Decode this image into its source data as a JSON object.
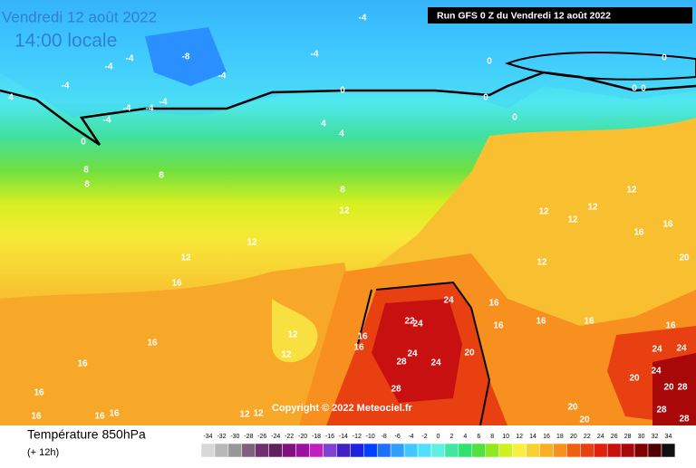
{
  "map": {
    "title": "Vendredi 12 août 2022",
    "subtitle": "14:00 locale",
    "run": "Run GFS 0 Z du Vendredi 12 août 2022",
    "copyright": "Copyright © 2022 Meteociel.fr",
    "variable": "Température 850hPa",
    "lead": "(+ 12h)",
    "contour_labels": [
      -4,
      -8,
      -4,
      -4,
      -4,
      -4,
      -4,
      -4,
      -4,
      -4,
      -4,
      0,
      0,
      0,
      0,
      0,
      0,
      0,
      0,
      4,
      4,
      4,
      8,
      8,
      8,
      8,
      12,
      12,
      12,
      16,
      12,
      12,
      16,
      16,
      16,
      16,
      16,
      16,
      12,
      12,
      12,
      12,
      12,
      12,
      16,
      16,
      12,
      24,
      22,
      24,
      24,
      28,
      24,
      20,
      16,
      16,
      16,
      16,
      16,
      16,
      28,
      20,
      24,
      24,
      20,
      24,
      20,
      28,
      28,
      28,
      20,
      20,
      16
    ],
    "scale": [
      {
        "value": -34,
        "color": "#d8d8d8"
      },
      {
        "value": -32,
        "color": "#b8b8b8"
      },
      {
        "value": -30,
        "color": "#989898"
      },
      {
        "value": -28,
        "color": "#806080"
      },
      {
        "value": -26,
        "color": "#703070"
      },
      {
        "value": -24,
        "color": "#602060"
      },
      {
        "value": -22,
        "color": "#801080"
      },
      {
        "value": -20,
        "color": "#a010a0"
      },
      {
        "value": -18,
        "color": "#c020c0"
      },
      {
        "value": -16,
        "color": "#8040d0"
      },
      {
        "value": -14,
        "color": "#4020c0"
      },
      {
        "value": -12,
        "color": "#2020e0"
      },
      {
        "value": -10,
        "color": "#0040ff"
      },
      {
        "value": -8,
        "color": "#2070ff"
      },
      {
        "value": -6,
        "color": "#30a0ff"
      },
      {
        "value": -4,
        "color": "#40c8ff"
      },
      {
        "value": -2,
        "color": "#50e0ff"
      },
      {
        "value": 0,
        "color": "#60f0e0"
      },
      {
        "value": 2,
        "color": "#40e8a0"
      },
      {
        "value": 4,
        "color": "#30e070"
      },
      {
        "value": 6,
        "color": "#50e040"
      },
      {
        "value": 8,
        "color": "#90e820"
      },
      {
        "value": 10,
        "color": "#d0f020"
      },
      {
        "value": 12,
        "color": "#f8f040"
      },
      {
        "value": 14,
        "color": "#f8d030"
      },
      {
        "value": 16,
        "color": "#f8b020"
      },
      {
        "value": 18,
        "color": "#f89020"
      },
      {
        "value": 20,
        "color": "#f06010"
      },
      {
        "value": 22,
        "color": "#e84010"
      },
      {
        "value": 24,
        "color": "#e02010"
      },
      {
        "value": 26,
        "color": "#c81010"
      },
      {
        "value": 28,
        "color": "#a80808"
      },
      {
        "value": 30,
        "color": "#800000"
      },
      {
        "value": 32,
        "color": "#500000"
      },
      {
        "value": 34,
        "color": "#101010"
      }
    ]
  }
}
